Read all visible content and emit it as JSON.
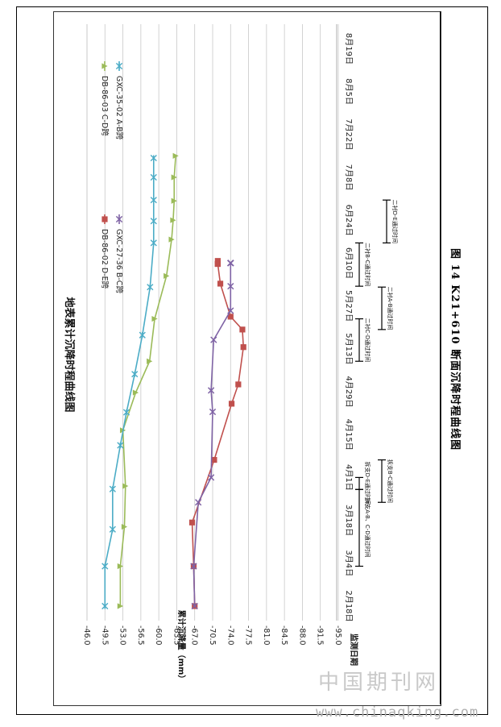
{
  "caption": "图 14   K21+610 断面沉降时程曲线图",
  "watermark": {
    "line1": "中国期刊网",
    "line2": "www.chinaqking.com"
  },
  "chart_data": {
    "type": "line",
    "title": "地表累计沉降时程曲线图",
    "xlabel": "监测日期",
    "ylabel": "累计沉降量（mm）",
    "ylim": [
      -95.0,
      -46.0
    ],
    "ytick_step": 3.5,
    "ytick_labels": [
      "-46.0",
      "-49.5",
      "-53.0",
      "-56.5",
      "-60.0",
      "-63.5",
      "-67.0",
      "-70.5",
      "-74.0",
      "-77.5",
      "-81.0",
      "-84.5",
      "-88.0",
      "-91.5",
      "-95.0"
    ],
    "grid": true,
    "orientation": "rotated-90-clockwise",
    "categories": [
      "2月18日",
      "3月4日",
      "3月18日",
      "4月1日",
      "4月15日",
      "4月29日",
      "5月13日",
      "5月27日",
      "6月10日",
      "6月24日",
      "7月8日",
      "7月22日",
      "8月5日",
      "8月19日"
    ],
    "series": [
      {
        "name": "DB-86-02 D-E跨",
        "color": "#c0504d",
        "marker": "square",
        "x": [
          0,
          0.93,
          1.95,
          3.41,
          4.72,
          5.17,
          6.04,
          6.45,
          6.75,
          7.52,
          7.98,
          7.98,
          7.98,
          8.05
        ],
        "y": [
          -67.0,
          -66.8,
          -66.5,
          -70.8,
          -74.2,
          -75.5,
          -76.5,
          -76.3,
          -74.0,
          -72.0,
          -71.5,
          -71.5,
          -71.5,
          -71.5
        ]
      },
      {
        "name": "GXC-27-36 B-C跨",
        "color": "#7f63a5",
        "marker": "x",
        "x": [
          0,
          0.93,
          2.42,
          3.0,
          4.53,
          5.03,
          6.21,
          6.89,
          7.46,
          8.0,
          8.0,
          8.0,
          8.0,
          8.0
        ],
        "y": [
          -67.0,
          -66.8,
          -67.7,
          -70.2,
          -70.5,
          -70.2,
          -70.7,
          -74.0,
          -74.0,
          -74.0,
          -74.0,
          -74.0,
          -74.0,
          -74.0
        ]
      },
      {
        "name": "DB-86-03 C-D跨",
        "color": "#9bbb59",
        "marker": "triangle",
        "x": [
          0,
          0.93,
          1.85,
          2.8,
          4.1,
          4.98,
          5.71,
          6.7,
          7.7,
          8.55,
          9.0,
          9.45,
          10.0,
          10.5
        ],
        "y": [
          -52.5,
          -52.5,
          -53.3,
          -53.5,
          -53.0,
          -55.5,
          -58.2,
          -59.2,
          -61.5,
          -62.5,
          -62.8,
          -63.0,
          -63.0,
          -63.3
        ]
      },
      {
        "name": "GXC-35-02 A-B跨",
        "color": "#4bacc6",
        "marker": "star",
        "x": [
          0,
          0.93,
          1.79,
          2.73,
          3.75,
          4.52,
          5.41,
          6.32,
          7.44,
          8.47,
          8.98,
          9.47,
          10.0,
          10.45
        ],
        "y": [
          -49.5,
          -49.5,
          -51.0,
          -51.0,
          -52.5,
          -53.7,
          -55.3,
          -56.8,
          -58.3,
          -59.0,
          -59.0,
          -59.0,
          -59.0,
          -59.0
        ]
      }
    ],
    "annotations": [
      {
        "text": "拆支A-B、C-D通过时间",
        "x0": 0.93,
        "x1": 2.72,
        "level": 0
      },
      {
        "text": "拆支D-E通过时间",
        "x0": 2.72,
        "x1": 3.0,
        "level": 0
      },
      {
        "text": "拆支B-C通过时间",
        "x0": 2.42,
        "x1": 3.41,
        "level": 1
      },
      {
        "text": "二衬C-D通过时间",
        "x0": 5.71,
        "x1": 6.7,
        "level": 0
      },
      {
        "text": "二衬A-B通过时间",
        "x0": 6.45,
        "x1": 7.44,
        "level": 1
      },
      {
        "text": "二衬B-C通过时间",
        "x0": 7.46,
        "x1": 8.47,
        "level": 0
      },
      {
        "text": "二衬D-E通过时间",
        "x0": 8.47,
        "x1": 9.47,
        "level": 2
      }
    ]
  }
}
